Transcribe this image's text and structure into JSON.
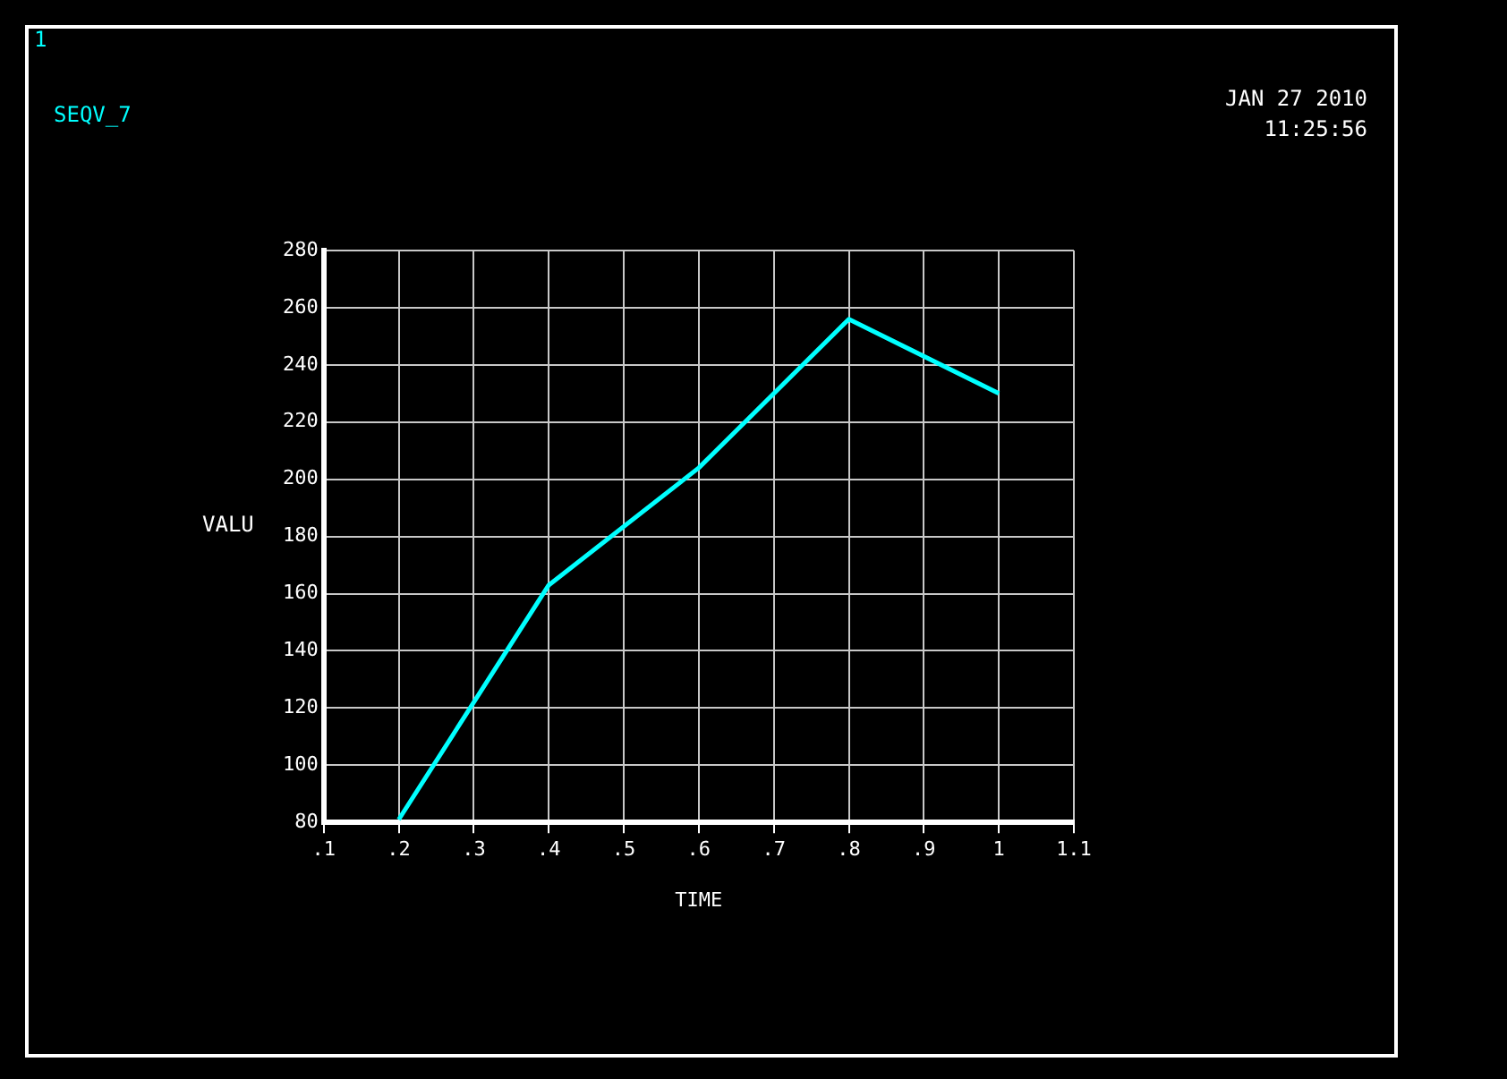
{
  "chart_data": {
    "type": "line",
    "xlabel": "TIME",
    "ylabel": "VALU",
    "annotations": [
      "1",
      "JAN 27 2010",
      "11:25:56"
    ],
    "x": [
      0.2,
      0.4,
      0.6,
      0.8,
      1.0
    ],
    "series": [
      {
        "name": "SEQV_7",
        "color": "#00ffff",
        "values": [
          81,
          163,
          204,
          256,
          230
        ]
      }
    ],
    "xlim": [
      0.1,
      1.1
    ],
    "xticks": [
      {
        "value": 0.1,
        "label": ".1"
      },
      {
        "value": 0.2,
        "label": ".2"
      },
      {
        "value": 0.3,
        "label": ".3"
      },
      {
        "value": 0.4,
        "label": ".4"
      },
      {
        "value": 0.5,
        "label": ".5"
      },
      {
        "value": 0.6,
        "label": ".6"
      },
      {
        "value": 0.7,
        "label": ".7"
      },
      {
        "value": 0.8,
        "label": ".8"
      },
      {
        "value": 0.9,
        "label": ".9"
      },
      1,
      {
        "value": 1.1,
        "label": "1.1"
      }
    ],
    "ylim": [
      80,
      280
    ],
    "yticks": [
      80,
      100,
      120,
      140,
      160,
      180,
      200,
      220,
      240,
      260,
      280
    ],
    "grid": true,
    "legend": "top left",
    "marker": "none",
    "line_style": "solid"
  }
}
